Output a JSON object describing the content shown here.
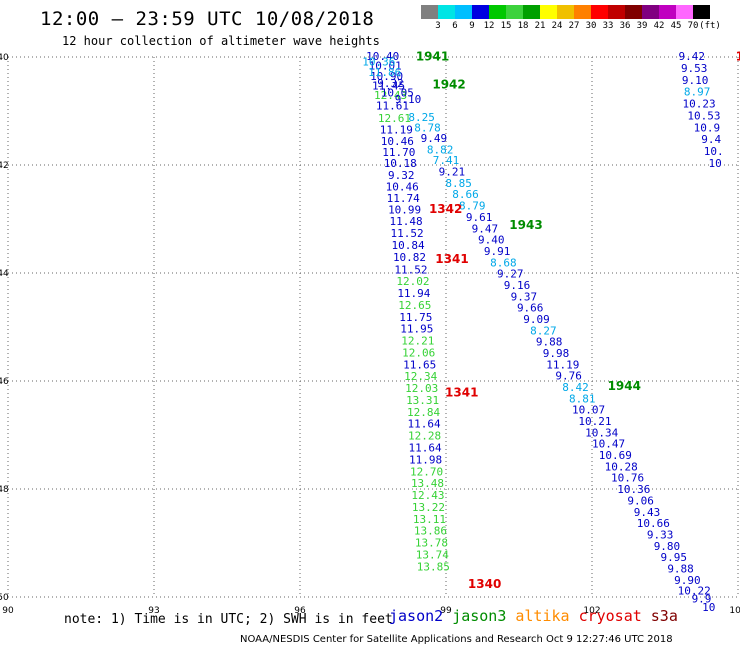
{
  "header": {
    "title": "12:00 – 23:59 UTC 10/08/2018",
    "subtitle": "12 hour collection of altimeter wave heights"
  },
  "colorbar": {
    "colors": [
      "#808080",
      "#00e5e5",
      "#00bfff",
      "#0000e0",
      "#00c800",
      "#3cd23c",
      "#00a000",
      "#ffff00",
      "#f0c000",
      "#ff8000",
      "#ff0000",
      "#c00000",
      "#800000",
      "#800080",
      "#c000c0",
      "#ff66ff",
      "#000000"
    ],
    "labels": [
      "3",
      "6",
      "9",
      "12",
      "15",
      "18",
      "21",
      "24",
      "27",
      "30",
      "33",
      "36",
      "39",
      "42",
      "45",
      "70",
      "(ft)"
    ]
  },
  "map": {
    "lon_ticks": [
      "90",
      "93",
      "96",
      "99",
      "102",
      "105"
    ],
    "lat_ticks": [
      "-40",
      "-42",
      "-44",
      "-46",
      "-48",
      "-50"
    ],
    "lon_range": [
      90,
      105
    ],
    "lat_range": [
      -50,
      -40
    ],
    "grid": "dotted",
    "colors": {
      "blue": "#0000c8",
      "light_blue": "#00a8e8",
      "green": "#36d236",
      "dark_green": "#008c00",
      "red": "#e00000"
    }
  },
  "tracks": [
    {
      "name": "track-west",
      "points": [
        {
          "lat": -40.0,
          "lon": 97.7,
          "v": "10.40",
          "c": "blue"
        },
        {
          "lat": -40.18,
          "lon": 97.75,
          "v": "10.01",
          "c": "blue"
        },
        {
          "lat": -40.37,
          "lon": 97.78,
          "v": "10.90",
          "c": "blue"
        },
        {
          "lat": -40.55,
          "lon": 97.82,
          "v": "11.45",
          "c": "blue"
        },
        {
          "lat": -40.72,
          "lon": 97.86,
          "v": "12.43",
          "c": "green"
        },
        {
          "lat": -40.92,
          "lon": 97.9,
          "v": "11.61",
          "c": "blue"
        },
        {
          "lat": -41.15,
          "lon": 97.94,
          "v": "12.61",
          "c": "green"
        },
        {
          "lat": -41.36,
          "lon": 97.98,
          "v": "11.19",
          "c": "blue"
        },
        {
          "lat": -41.57,
          "lon": 98.0,
          "v": "10.46",
          "c": "blue"
        },
        {
          "lat": -41.78,
          "lon": 98.03,
          "v": "11.70",
          "c": "blue"
        },
        {
          "lat": -41.98,
          "lon": 98.06,
          "v": "10.18",
          "c": "blue"
        },
        {
          "lat": -42.2,
          "lon": 98.08,
          "v": "9.32",
          "c": "blue"
        },
        {
          "lat": -42.42,
          "lon": 98.1,
          "v": "10.46",
          "c": "blue"
        },
        {
          "lat": -42.63,
          "lon": 98.12,
          "v": "11.74",
          "c": "blue"
        },
        {
          "lat": -42.84,
          "lon": 98.15,
          "v": "10.99",
          "c": "blue"
        },
        {
          "lat": -43.06,
          "lon": 98.18,
          "v": "11.48",
          "c": "blue"
        },
        {
          "lat": -43.28,
          "lon": 98.2,
          "v": "11.52",
          "c": "blue"
        },
        {
          "lat": -43.5,
          "lon": 98.22,
          "v": "10.84",
          "c": "blue"
        },
        {
          "lat": -43.72,
          "lon": 98.25,
          "v": "10.82",
          "c": "blue"
        },
        {
          "lat": -43.95,
          "lon": 98.28,
          "v": "11.52",
          "c": "blue"
        },
        {
          "lat": -44.17,
          "lon": 98.32,
          "v": "12.02",
          "c": "green"
        },
        {
          "lat": -44.39,
          "lon": 98.34,
          "v": "11.94",
          "c": "blue"
        },
        {
          "lat": -44.61,
          "lon": 98.36,
          "v": "12.65",
          "c": "green"
        },
        {
          "lat": -44.83,
          "lon": 98.38,
          "v": "11.75",
          "c": "blue"
        },
        {
          "lat": -45.05,
          "lon": 98.4,
          "v": "11.95",
          "c": "blue"
        },
        {
          "lat": -45.27,
          "lon": 98.42,
          "v": "12.21",
          "c": "green"
        },
        {
          "lat": -45.49,
          "lon": 98.44,
          "v": "12.06",
          "c": "green"
        },
        {
          "lat": -45.71,
          "lon": 98.46,
          "v": "11.65",
          "c": "blue"
        },
        {
          "lat": -45.93,
          "lon": 98.48,
          "v": "12.34",
          "c": "green"
        },
        {
          "lat": -46.15,
          "lon": 98.5,
          "v": "12.03",
          "c": "green"
        },
        {
          "lat": -46.37,
          "lon": 98.52,
          "v": "13.31",
          "c": "green"
        },
        {
          "lat": -46.59,
          "lon": 98.54,
          "v": "12.84",
          "c": "green"
        },
        {
          "lat": -46.81,
          "lon": 98.55,
          "v": "11.64",
          "c": "blue"
        },
        {
          "lat": -47.03,
          "lon": 98.56,
          "v": "12.28",
          "c": "green"
        },
        {
          "lat": -47.25,
          "lon": 98.57,
          "v": "11.64",
          "c": "blue"
        },
        {
          "lat": -47.47,
          "lon": 98.58,
          "v": "11.98",
          "c": "blue"
        },
        {
          "lat": -47.69,
          "lon": 98.6,
          "v": "12.70",
          "c": "green"
        },
        {
          "lat": -47.91,
          "lon": 98.62,
          "v": "13.48",
          "c": "green"
        },
        {
          "lat": -48.13,
          "lon": 98.63,
          "v": "12.43",
          "c": "green"
        },
        {
          "lat": -48.35,
          "lon": 98.64,
          "v": "13.22",
          "c": "green"
        },
        {
          "lat": -48.57,
          "lon": 98.66,
          "v": "13.11",
          "c": "green"
        },
        {
          "lat": -48.79,
          "lon": 98.68,
          "v": "13.86",
          "c": "green"
        },
        {
          "lat": -49.01,
          "lon": 98.7,
          "v": "13.78",
          "c": "green"
        },
        {
          "lat": -49.23,
          "lon": 98.72,
          "v": "13.74",
          "c": "green"
        },
        {
          "lat": -49.45,
          "lon": 98.74,
          "v": "13.85",
          "c": "green"
        }
      ]
    },
    {
      "name": "track-middle",
      "points": [
        {
          "lat": -40.1,
          "lon": 97.62,
          "v": "10.36",
          "c": "light_blue"
        },
        {
          "lat": -40.3,
          "lon": 97.74,
          "v": "11.86",
          "c": "light_blue"
        },
        {
          "lat": -40.5,
          "lon": 97.86,
          "v": "9.32",
          "c": "blue"
        },
        {
          "lat": -40.68,
          "lon": 98.0,
          "v": "10.05",
          "c": "blue"
        },
        {
          "lat": -40.8,
          "lon": 98.22,
          "v": "9.10",
          "c": "blue"
        },
        {
          "lat": -41.13,
          "lon": 98.5,
          "v": "8.25",
          "c": "light_blue"
        },
        {
          "lat": -41.32,
          "lon": 98.62,
          "v": "8.78",
          "c": "light_blue"
        },
        {
          "lat": -41.52,
          "lon": 98.75,
          "v": "9.49",
          "c": "blue"
        },
        {
          "lat": -41.73,
          "lon": 98.88,
          "v": "8.82",
          "c": "light_blue"
        },
        {
          "lat": -41.93,
          "lon": 99.0,
          "v": "7.41",
          "c": "light_blue"
        },
        {
          "lat": -42.14,
          "lon": 99.12,
          "v": "9.21",
          "c": "blue"
        },
        {
          "lat": -42.35,
          "lon": 99.26,
          "v": "8.85",
          "c": "light_blue"
        },
        {
          "lat": -42.56,
          "lon": 99.4,
          "v": "8.66",
          "c": "light_blue"
        },
        {
          "lat": -42.77,
          "lon": 99.54,
          "v": "8.79",
          "c": "light_blue"
        },
        {
          "lat": -42.98,
          "lon": 99.68,
          "v": "9.61",
          "c": "blue"
        },
        {
          "lat": -43.19,
          "lon": 99.8,
          "v": "9.47",
          "c": "blue"
        },
        {
          "lat": -43.4,
          "lon": 99.93,
          "v": "9.40",
          "c": "blue"
        },
        {
          "lat": -43.61,
          "lon": 100.05,
          "v": "9.91",
          "c": "blue"
        },
        {
          "lat": -43.82,
          "lon": 100.18,
          "v": "8.68",
          "c": "light_blue"
        },
        {
          "lat": -44.03,
          "lon": 100.32,
          "v": "9.27",
          "c": "blue"
        },
        {
          "lat": -44.24,
          "lon": 100.46,
          "v": "9.16",
          "c": "blue"
        },
        {
          "lat": -44.45,
          "lon": 100.6,
          "v": "9.37",
          "c": "blue"
        },
        {
          "lat": -44.66,
          "lon": 100.73,
          "v": "9.66",
          "c": "blue"
        },
        {
          "lat": -44.87,
          "lon": 100.86,
          "v": "9.09",
          "c": "blue"
        },
        {
          "lat": -45.08,
          "lon": 101.0,
          "v": "8.27",
          "c": "light_blue"
        },
        {
          "lat": -45.29,
          "lon": 101.12,
          "v": "9.88",
          "c": "blue"
        },
        {
          "lat": -45.5,
          "lon": 101.26,
          "v": "9.98",
          "c": "blue"
        },
        {
          "lat": -45.71,
          "lon": 101.4,
          "v": "11.19",
          "c": "blue"
        },
        {
          "lat": -45.92,
          "lon": 101.52,
          "v": "9.76",
          "c": "blue"
        },
        {
          "lat": -46.13,
          "lon": 101.66,
          "v": "8.42",
          "c": "light_blue"
        },
        {
          "lat": -46.34,
          "lon": 101.8,
          "v": "8.81",
          "c": "light_blue"
        },
        {
          "lat": -46.55,
          "lon": 101.93,
          "v": "10.07",
          "c": "blue"
        },
        {
          "lat": -46.76,
          "lon": 102.06,
          "v": "10.21",
          "c": "blue"
        },
        {
          "lat": -46.97,
          "lon": 102.2,
          "v": "10.34",
          "c": "blue"
        },
        {
          "lat": -47.18,
          "lon": 102.34,
          "v": "10.47",
          "c": "blue"
        },
        {
          "lat": -47.39,
          "lon": 102.48,
          "v": "10.69",
          "c": "blue"
        },
        {
          "lat": -47.6,
          "lon": 102.6,
          "v": "10.28",
          "c": "blue"
        },
        {
          "lat": -47.81,
          "lon": 102.73,
          "v": "10.76",
          "c": "blue"
        },
        {
          "lat": -48.02,
          "lon": 102.86,
          "v": "10.36",
          "c": "blue"
        },
        {
          "lat": -48.23,
          "lon": 103.0,
          "v": "9.06",
          "c": "blue"
        },
        {
          "lat": -48.44,
          "lon": 103.13,
          "v": "9.43",
          "c": "blue"
        },
        {
          "lat": -48.65,
          "lon": 103.26,
          "v": "10.66",
          "c": "blue"
        },
        {
          "lat": -48.86,
          "lon": 103.4,
          "v": "9.33",
          "c": "blue"
        },
        {
          "lat": -49.07,
          "lon": 103.54,
          "v": "9.80",
          "c": "blue"
        },
        {
          "lat": -49.28,
          "lon": 103.68,
          "v": "9.95",
          "c": "blue"
        },
        {
          "lat": -49.49,
          "lon": 103.82,
          "v": "9.88",
          "c": "blue"
        },
        {
          "lat": -49.7,
          "lon": 103.96,
          "v": "9.90",
          "c": "blue"
        },
        {
          "lat": -49.9,
          "lon": 104.1,
          "v": "10.22",
          "c": "blue"
        },
        {
          "lat": -50.05,
          "lon": 104.25,
          "v": "9.9",
          "c": "blue"
        },
        {
          "lat": -50.2,
          "lon": 104.4,
          "v": "10",
          "c": "blue"
        }
      ]
    },
    {
      "name": "track-east",
      "points": [
        {
          "lat": -40.0,
          "lon": 104.05,
          "v": "9.42",
          "c": "blue"
        },
        {
          "lat": -40.22,
          "lon": 104.1,
          "v": "9.53",
          "c": "blue"
        },
        {
          "lat": -40.44,
          "lon": 104.12,
          "v": "9.10",
          "c": "blue"
        },
        {
          "lat": -40.66,
          "lon": 104.16,
          "v": "8.97",
          "c": "light_blue"
        },
        {
          "lat": -40.88,
          "lon": 104.2,
          "v": "10.23",
          "c": "blue"
        },
        {
          "lat": -41.1,
          "lon": 104.3,
          "v": "10.53",
          "c": "blue"
        },
        {
          "lat": -41.32,
          "lon": 104.36,
          "v": "10.9",
          "c": "blue"
        },
        {
          "lat": -41.54,
          "lon": 104.45,
          "v": "9.4",
          "c": "blue"
        },
        {
          "lat": -41.76,
          "lon": 104.5,
          "v": "10.",
          "c": "blue"
        },
        {
          "lat": -41.98,
          "lon": 104.53,
          "v": "10",
          "c": "blue"
        }
      ]
    }
  ],
  "times": [
    {
      "t": "1941",
      "lat": -40.0,
      "lon": 98.38,
      "c": "dark_green"
    },
    {
      "t": "1942",
      "lat": -40.52,
      "lon": 98.72,
      "c": "dark_green"
    },
    {
      "t": "1943",
      "lat": -43.12,
      "lon": 100.3,
      "c": "dark_green"
    },
    {
      "t": "1944",
      "lat": -46.1,
      "lon": 102.32,
      "c": "dark_green"
    },
    {
      "t": "1342",
      "lat": -42.82,
      "lon": 98.65,
      "c": "red"
    },
    {
      "t": "1341",
      "lat": -43.75,
      "lon": 98.78,
      "c": "red"
    },
    {
      "t": "1341",
      "lat": -46.22,
      "lon": 98.98,
      "c": "red"
    },
    {
      "t": "1340",
      "lat": -49.77,
      "lon": 99.45,
      "c": "red"
    },
    {
      "t": "1",
      "lat": -40.0,
      "lon": 104.95,
      "c": "red"
    }
  ],
  "note": "note: 1) Time is in UTC; 2) SWH is in feet",
  "legend": [
    {
      "label": "jason2",
      "color": "#0000c8"
    },
    {
      "label": "jason3",
      "color": "#008c00"
    },
    {
      "label": "altika",
      "color": "#ff8c00"
    },
    {
      "label": "cryosat",
      "color": "#e00000"
    },
    {
      "label": "s3a",
      "color": "#800000"
    }
  ],
  "credit": "NOAA/NESDIS Center for Satellite Applications and Research   Oct  9 12:27:46 UTC 2018"
}
